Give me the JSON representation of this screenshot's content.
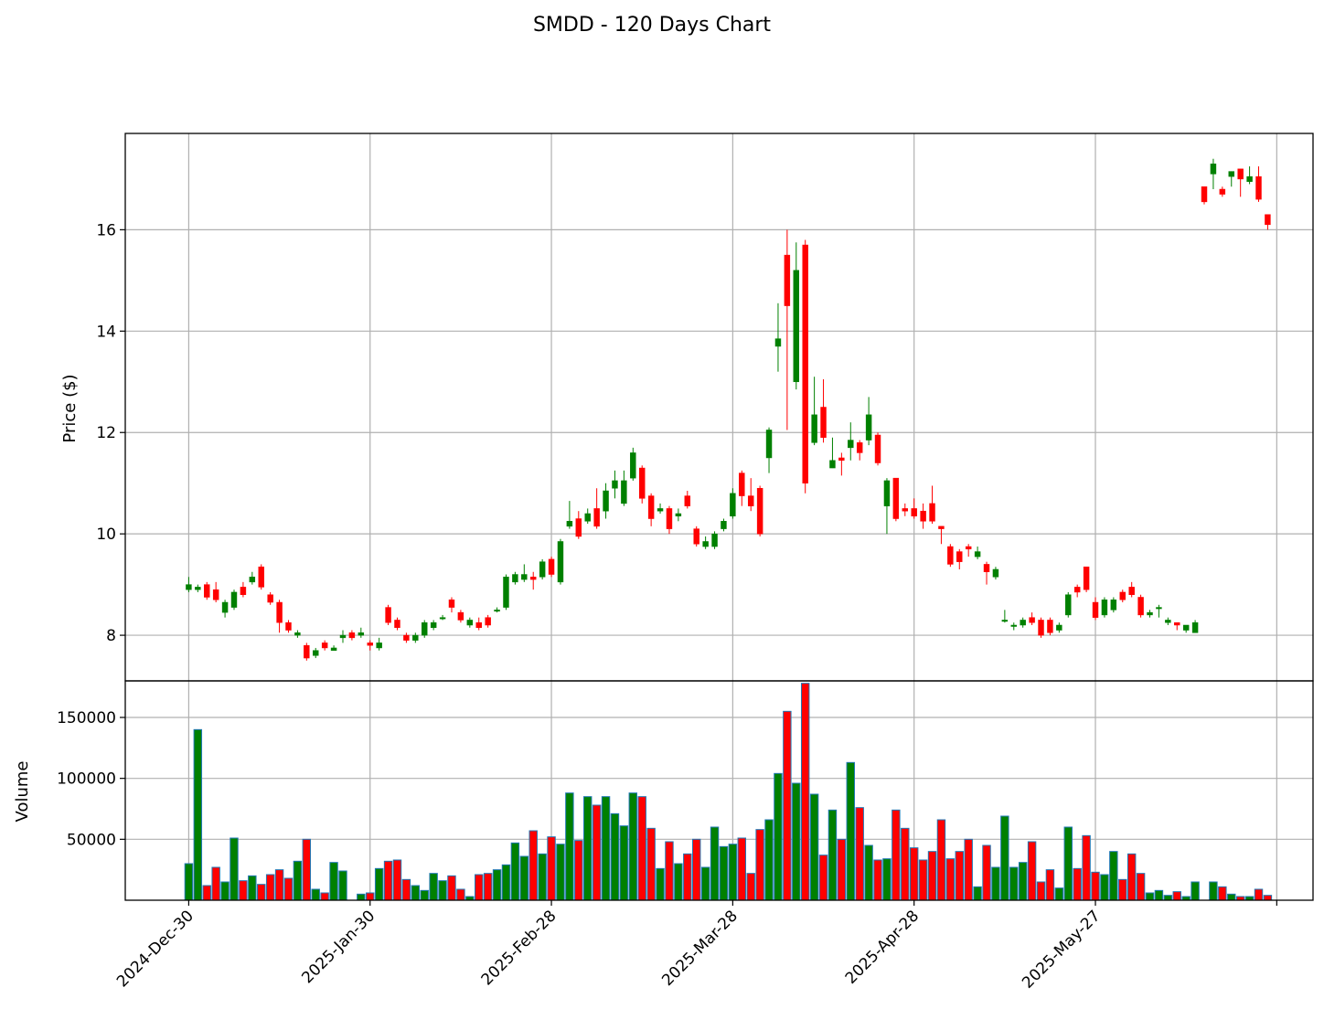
{
  "chart_data": {
    "type": "candlestick",
    "title": "SMDD - 120 Days Chart",
    "ylabel_price": "Price ($)",
    "ylabel_volume": "Volume",
    "grid": true,
    "colors": {
      "up": "#008000",
      "down": "#ff0000",
      "volume_edge": "#1f77b4"
    },
    "price_ylim": [
      7.1,
      17.9
    ],
    "price_ticks": [
      8,
      10,
      12,
      14,
      16
    ],
    "volume_ylim": [
      0,
      180000
    ],
    "volume_ticks": [
      50000,
      100000,
      150000
    ],
    "volume_tick_labels": [
      "50000",
      "100000",
      "150000"
    ],
    "x_tick_labels": [
      "2024-Dec-30",
      "2025-Jan-30",
      "2025-Feb-28",
      "2025-Mar-28",
      "2025-Apr-28",
      "2025-May-27"
    ],
    "x_tick_index": [
      0,
      20,
      40,
      60,
      80,
      100
    ],
    "x_range": [
      -7,
      124
    ],
    "candles": [
      [
        0,
        8.9,
        9.0,
        9.15,
        8.85,
        30000
      ],
      [
        1,
        8.9,
        8.95,
        9.0,
        8.85,
        140000
      ],
      [
        2,
        9.0,
        8.75,
        9.05,
        8.7,
        12000
      ],
      [
        3,
        8.9,
        8.7,
        9.05,
        8.65,
        27000
      ],
      [
        4,
        8.45,
        8.65,
        8.7,
        8.35,
        15000
      ],
      [
        5,
        8.55,
        8.85,
        8.9,
        8.5,
        51000
      ],
      [
        6,
        8.95,
        8.8,
        9.05,
        8.75,
        16000
      ],
      [
        7,
        9.05,
        9.15,
        9.25,
        9.0,
        20000
      ],
      [
        8,
        9.35,
        8.95,
        9.4,
        8.9,
        13000
      ],
      [
        9,
        8.8,
        8.65,
        8.85,
        8.6,
        21000
      ],
      [
        10,
        8.65,
        8.25,
        8.7,
        8.05,
        25000
      ],
      [
        11,
        8.25,
        8.1,
        8.3,
        8.05,
        18000
      ],
      [
        12,
        8.0,
        8.05,
        8.1,
        7.95,
        32000
      ],
      [
        13,
        7.8,
        7.55,
        7.85,
        7.5,
        50000
      ],
      [
        14,
        7.6,
        7.7,
        7.75,
        7.55,
        9000
      ],
      [
        15,
        7.85,
        7.75,
        7.9,
        7.7,
        6000
      ],
      [
        16,
        7.7,
        7.75,
        7.8,
        7.7,
        31000
      ],
      [
        17,
        7.95,
        8.0,
        8.1,
        7.85,
        24000
      ],
      [
        18,
        8.05,
        7.95,
        8.1,
        7.9,
        0
      ],
      [
        19,
        8.0,
        8.05,
        8.15,
        7.95,
        5000
      ],
      [
        20,
        7.85,
        7.8,
        7.9,
        7.7,
        6000
      ],
      [
        21,
        7.75,
        7.85,
        7.95,
        7.7,
        26000
      ],
      [
        22,
        8.55,
        8.25,
        8.6,
        8.2,
        32000
      ],
      [
        23,
        8.3,
        8.15,
        8.35,
        8.1,
        33000
      ],
      [
        24,
        8.0,
        7.9,
        8.05,
        7.85,
        17000
      ],
      [
        25,
        7.9,
        8.0,
        8.05,
        7.85,
        12000
      ],
      [
        26,
        8.0,
        8.25,
        8.3,
        7.95,
        8000
      ],
      [
        27,
        8.15,
        8.25,
        8.3,
        8.1,
        22000
      ],
      [
        28,
        8.35,
        8.35,
        8.4,
        8.3,
        16000
      ],
      [
        29,
        8.7,
        8.55,
        8.75,
        8.45,
        20000
      ],
      [
        30,
        8.45,
        8.3,
        8.5,
        8.25,
        9000
      ],
      [
        31,
        8.2,
        8.3,
        8.35,
        8.15,
        3000
      ],
      [
        32,
        8.25,
        8.15,
        8.35,
        8.1,
        21000
      ],
      [
        33,
        8.35,
        8.2,
        8.4,
        8.15,
        22000
      ],
      [
        34,
        8.5,
        8.5,
        8.55,
        8.45,
        25000
      ],
      [
        35,
        8.55,
        9.15,
        9.2,
        8.5,
        29000
      ],
      [
        36,
        9.05,
        9.2,
        9.25,
        9.0,
        47000
      ],
      [
        37,
        9.1,
        9.2,
        9.4,
        9.05,
        36000
      ],
      [
        38,
        9.15,
        9.1,
        9.25,
        8.9,
        57000
      ],
      [
        39,
        9.15,
        9.45,
        9.5,
        9.1,
        38000
      ],
      [
        40,
        9.5,
        9.2,
        9.55,
        9.15,
        52000
      ],
      [
        41,
        9.05,
        9.85,
        9.9,
        9.0,
        46000
      ],
      [
        42,
        10.15,
        10.25,
        10.65,
        10.1,
        88000
      ],
      [
        43,
        10.3,
        9.95,
        10.45,
        9.9,
        49000
      ],
      [
        44,
        10.25,
        10.4,
        10.5,
        10.2,
        85000
      ],
      [
        45,
        10.5,
        10.15,
        10.9,
        10.1,
        78000
      ],
      [
        46,
        10.45,
        10.85,
        11.0,
        10.3,
        85000
      ],
      [
        47,
        10.9,
        11.05,
        11.25,
        10.7,
        71000
      ],
      [
        48,
        10.6,
        11.05,
        11.25,
        10.55,
        61000
      ],
      [
        49,
        11.1,
        11.6,
        11.7,
        11.05,
        88000
      ],
      [
        50,
        11.3,
        10.7,
        11.35,
        10.6,
        85000
      ],
      [
        51,
        10.75,
        10.3,
        10.8,
        10.15,
        59000
      ],
      [
        52,
        10.45,
        10.5,
        10.6,
        10.4,
        26000
      ],
      [
        53,
        10.5,
        10.1,
        10.55,
        10.0,
        48000
      ],
      [
        54,
        10.35,
        10.4,
        10.5,
        10.25,
        30000
      ],
      [
        55,
        10.75,
        10.55,
        10.85,
        10.5,
        38000
      ],
      [
        56,
        10.1,
        9.8,
        10.15,
        9.75,
        50000
      ],
      [
        57,
        9.75,
        9.85,
        9.95,
        9.7,
        27000
      ],
      [
        58,
        9.75,
        10.0,
        10.05,
        9.7,
        60000
      ],
      [
        59,
        10.1,
        10.25,
        10.3,
        10.05,
        44000
      ],
      [
        60,
        10.35,
        10.8,
        10.9,
        10.3,
        46000
      ],
      [
        61,
        11.2,
        10.75,
        11.25,
        10.55,
        51000
      ],
      [
        62,
        10.75,
        10.55,
        11.1,
        10.45,
        22000
      ],
      [
        63,
        10.9,
        10.0,
        10.95,
        9.95,
        58000
      ],
      [
        64,
        11.5,
        12.05,
        12.1,
        11.2,
        66000
      ],
      [
        65,
        13.7,
        13.85,
        14.55,
        13.2,
        104000
      ],
      [
        66,
        15.5,
        14.5,
        16.0,
        12.05,
        155000
      ],
      [
        67,
        13.0,
        15.2,
        15.75,
        12.85,
        96000
      ],
      [
        68,
        15.7,
        11.0,
        15.8,
        10.8,
        178000
      ],
      [
        69,
        11.8,
        12.35,
        13.1,
        11.75,
        87000
      ],
      [
        70,
        12.5,
        11.9,
        13.05,
        11.8,
        37000
      ],
      [
        71,
        11.3,
        11.45,
        11.9,
        11.3,
        74000
      ],
      [
        72,
        11.5,
        11.45,
        11.6,
        11.15,
        50000
      ],
      [
        73,
        11.7,
        11.85,
        12.2,
        11.45,
        113000
      ],
      [
        74,
        11.8,
        11.6,
        11.85,
        11.45,
        76000
      ],
      [
        75,
        11.85,
        12.35,
        12.7,
        11.75,
        45000
      ],
      [
        76,
        11.95,
        11.4,
        12.0,
        11.35,
        33000
      ],
      [
        77,
        10.55,
        11.05,
        11.1,
        10.0,
        34000
      ],
      [
        78,
        11.1,
        10.3,
        11.1,
        10.25,
        74000
      ],
      [
        79,
        10.5,
        10.45,
        10.6,
        10.35,
        59000
      ],
      [
        80,
        10.5,
        10.35,
        10.7,
        10.3,
        43000
      ],
      [
        81,
        10.45,
        10.25,
        10.6,
        10.1,
        33000
      ],
      [
        82,
        10.6,
        10.25,
        10.95,
        10.2,
        40000
      ],
      [
        83,
        10.15,
        10.1,
        10.15,
        9.8,
        66000
      ],
      [
        84,
        9.75,
        9.4,
        9.8,
        9.35,
        34000
      ],
      [
        85,
        9.65,
        9.45,
        9.7,
        9.3,
        40000
      ],
      [
        86,
        9.75,
        9.7,
        9.8,
        9.55,
        50000
      ],
      [
        87,
        9.55,
        9.65,
        9.75,
        9.5,
        11000
      ],
      [
        88,
        9.4,
        9.25,
        9.45,
        9.0,
        45000
      ],
      [
        89,
        9.15,
        9.3,
        9.35,
        9.1,
        27000
      ],
      [
        90,
        8.3,
        8.3,
        8.5,
        8.25,
        69000
      ],
      [
        91,
        8.2,
        8.2,
        8.25,
        8.1,
        27000
      ],
      [
        92,
        8.2,
        8.3,
        8.35,
        8.15,
        31000
      ],
      [
        93,
        8.35,
        8.25,
        8.45,
        8.2,
        48000
      ],
      [
        94,
        8.3,
        8.0,
        8.35,
        7.95,
        15000
      ],
      [
        95,
        8.3,
        8.05,
        8.35,
        8.0,
        25000
      ],
      [
        96,
        8.1,
        8.2,
        8.25,
        8.05,
        10000
      ],
      [
        97,
        8.4,
        8.8,
        8.85,
        8.35,
        60000
      ],
      [
        98,
        8.95,
        8.85,
        9.0,
        8.75,
        26000
      ],
      [
        99,
        9.35,
        8.9,
        9.35,
        8.85,
        53000
      ],
      [
        100,
        8.65,
        8.35,
        8.75,
        8.3,
        23000
      ],
      [
        101,
        8.4,
        8.7,
        8.75,
        8.35,
        21000
      ],
      [
        102,
        8.5,
        8.7,
        8.75,
        8.45,
        40000
      ],
      [
        103,
        8.85,
        8.7,
        8.9,
        8.65,
        17000
      ],
      [
        104,
        8.95,
        8.8,
        9.05,
        8.75,
        38000
      ],
      [
        105,
        8.75,
        8.4,
        8.8,
        8.35,
        22000
      ],
      [
        106,
        8.4,
        8.45,
        8.5,
        8.35,
        6000
      ],
      [
        107,
        8.55,
        8.55,
        8.6,
        8.35,
        8000
      ],
      [
        108,
        8.25,
        8.3,
        8.35,
        8.2,
        4000
      ],
      [
        109,
        8.25,
        8.2,
        8.25,
        8.1,
        7000
      ],
      [
        110,
        8.1,
        8.2,
        8.2,
        8.05,
        3000
      ],
      [
        111,
        8.05,
        8.25,
        8.3,
        8.05,
        15000
      ],
      [
        112,
        16.85,
        16.55,
        16.85,
        16.5,
        0
      ],
      [
        113,
        17.1,
        17.3,
        17.4,
        16.8,
        15000
      ],
      [
        114,
        16.8,
        16.7,
        16.85,
        16.65,
        11000
      ],
      [
        115,
        17.05,
        17.15,
        17.15,
        16.85,
        5000
      ],
      [
        116,
        17.2,
        17.0,
        17.2,
        16.65,
        3000
      ],
      [
        117,
        16.95,
        17.05,
        17.25,
        16.9,
        3000
      ],
      [
        118,
        17.05,
        16.6,
        17.25,
        16.55,
        9000
      ],
      [
        119,
        16.3,
        16.1,
        16.3,
        16.0,
        4000
      ]
    ]
  }
}
